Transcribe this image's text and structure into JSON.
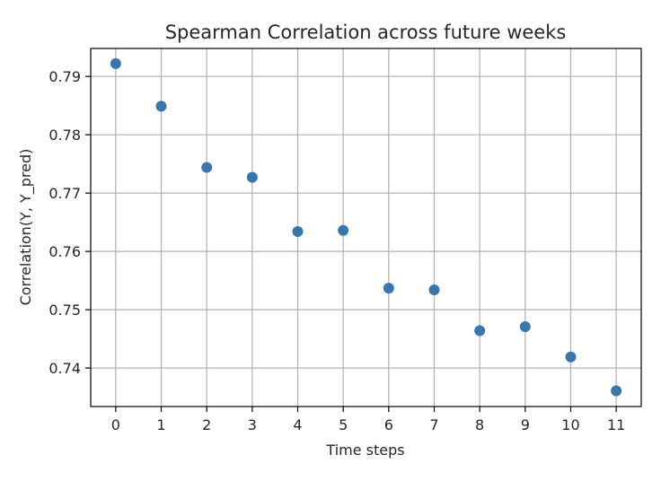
{
  "chart_data": {
    "type": "scatter",
    "title": "Spearman Correlation across future weeks",
    "xlabel": "Time steps",
    "ylabel": "Correlation(Y, Y_pred)",
    "x": [
      0,
      1,
      2,
      3,
      4,
      5,
      6,
      7,
      8,
      9,
      10,
      11
    ],
    "y": [
      0.7922,
      0.7849,
      0.7744,
      0.7727,
      0.7634,
      0.7636,
      0.7537,
      0.7534,
      0.7464,
      0.7471,
      0.7419,
      0.7361
    ],
    "xticks": [
      "0",
      "1",
      "2",
      "3",
      "4",
      "5",
      "6",
      "7",
      "8",
      "9",
      "10",
      "11"
    ],
    "yticks": [
      "0.74",
      "0.75",
      "0.76",
      "0.77",
      "0.78",
      "0.79"
    ],
    "ytick_values": [
      0.74,
      0.75,
      0.76,
      0.77,
      0.78,
      0.79
    ],
    "xlim": [
      -0.55,
      11.55
    ],
    "ylim": [
      0.7334,
      0.7948
    ],
    "grid": true,
    "marker_color": "#3a75ae",
    "grid_color": "#b0b0b0"
  }
}
